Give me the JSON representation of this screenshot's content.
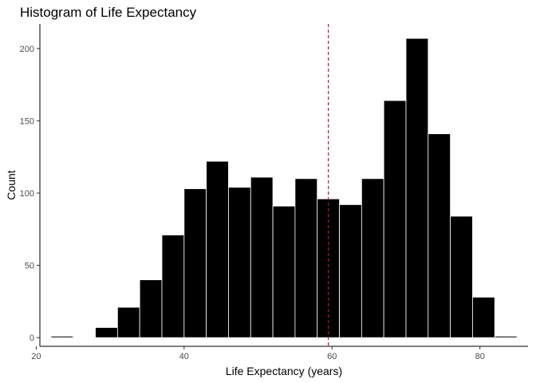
{
  "chart_data": {
    "type": "bar",
    "title": "Histogram of Life Expectancy",
    "xlabel": "Life Expectancy (years)",
    "ylabel": "Count",
    "bin_width": 3,
    "bin_starts": [
      22,
      25,
      28,
      31,
      34,
      37,
      40,
      43,
      46,
      49,
      52,
      55,
      58,
      61,
      64,
      67,
      70,
      73,
      76,
      79,
      82
    ],
    "values": [
      1,
      0,
      7,
      21,
      40,
      71,
      103,
      122,
      104,
      111,
      91,
      110,
      96,
      92,
      110,
      164,
      207,
      141,
      84,
      28,
      1
    ],
    "xlim": [
      20.5,
      86.5
    ],
    "ylim": [
      -6,
      217
    ],
    "x_ticks": [
      20,
      40,
      60,
      80
    ],
    "y_ticks": [
      0,
      50,
      100,
      150,
      200
    ],
    "mean_line": {
      "x": 59.5,
      "color": "#b2182b",
      "style": "dashed"
    },
    "bar_fill": "#000000",
    "bar_edge": "#ffffff",
    "grid": false
  }
}
